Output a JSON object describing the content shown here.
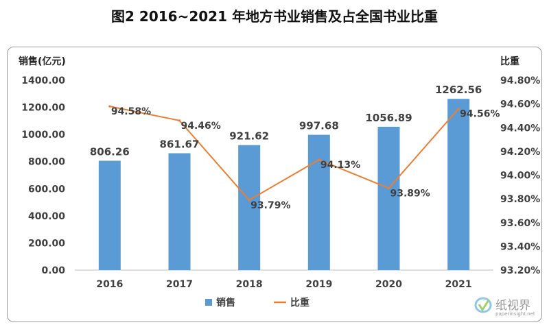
{
  "title": "图2  2016~2021 年地方书业销售及占全国书业比重",
  "chart_data": {
    "type": "bar",
    "categories": [
      "2016",
      "2017",
      "2018",
      "2019",
      "2020",
      "2021"
    ],
    "series": [
      {
        "name": "销售",
        "type": "bar",
        "axis": "left",
        "color": "#5B9BD5",
        "values": [
          806.26,
          861.67,
          921.62,
          997.68,
          1056.89,
          1262.56
        ],
        "labels": [
          "806.26",
          "861.67",
          "921.62",
          "997.68",
          "1056.89",
          "1262.56"
        ]
      },
      {
        "name": "比重",
        "type": "line",
        "axis": "right",
        "color": "#ED7D31",
        "values": [
          94.58,
          94.46,
          93.79,
          94.13,
          93.89,
          94.56
        ],
        "labels": [
          "94.58%",
          "94.46%",
          "93.79%",
          "94.13%",
          "93.89%",
          "94.56%"
        ]
      }
    ],
    "y_left": {
      "label": "销售(亿元)",
      "min": 0,
      "max": 1400,
      "ticks": [
        "0.00",
        "200.00",
        "400.00",
        "600.00",
        "800.00",
        "1000.00",
        "1200.00",
        "1400.00"
      ]
    },
    "y_right": {
      "label": "比重",
      "min": 93.2,
      "max": 94.8,
      "ticks": [
        "93.20%",
        "93.40%",
        "93.60%",
        "93.80%",
        "94.00%",
        "94.20%",
        "94.40%",
        "94.60%",
        "94.80%"
      ]
    },
    "grid": false,
    "legend_position": "bottom"
  },
  "watermark": {
    "text": "纸视界",
    "sub": "paperinsight.net"
  }
}
